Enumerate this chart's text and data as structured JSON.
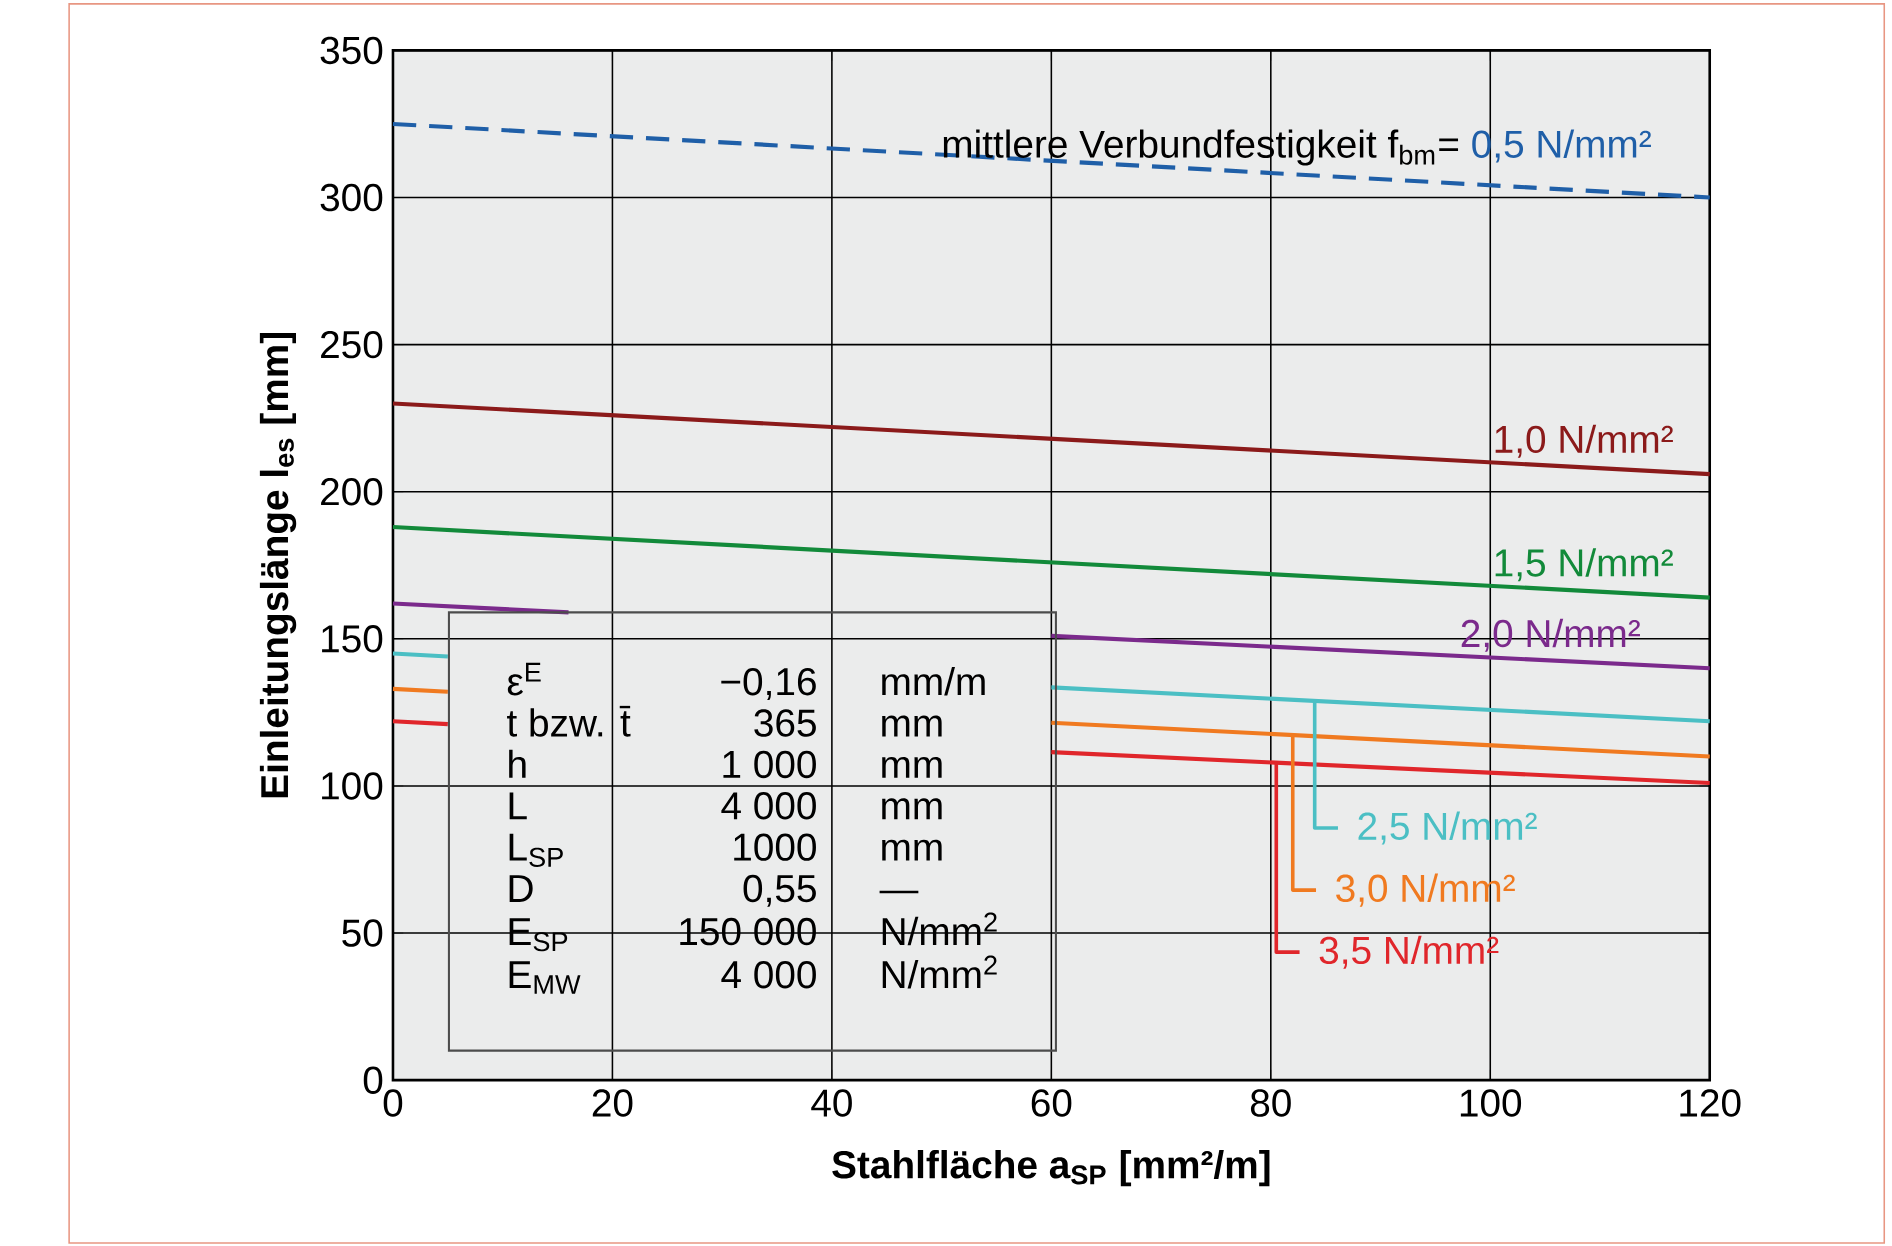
{
  "chart_data": {
    "type": "line",
    "xlabel": "Stahlfläche a$_{SP}$ [mm²/m]",
    "ylabel": "Einleitungslänge l$_{es}$ [mm]",
    "x": [
      0,
      120
    ],
    "xlim": [
      0,
      120
    ],
    "ylim": [
      0,
      350
    ],
    "xticks": [
      0,
      20,
      40,
      60,
      80,
      100,
      120
    ],
    "yticks": [
      0,
      50,
      100,
      150,
      200,
      250,
      300,
      350
    ],
    "grid": true,
    "series": [
      {
        "color": "#1f5fa8",
        "values": [
          325,
          300
        ],
        "line_style": "dashed"
      },
      {
        "color": "#8b1a1a",
        "values": [
          230,
          206
        ]
      },
      {
        "color": "#128a3a",
        "values": [
          188,
          164
        ]
      },
      {
        "color": "#7b2a8c",
        "x": [
          0,
          16,
          38,
          60,
          120
        ],
        "values": [
          162,
          159,
          null,
          151,
          140
        ]
      },
      {
        "color": "#4bbfc4",
        "x": [
          0,
          5,
          33,
          60,
          120
        ],
        "values": [
          145,
          144,
          null,
          133.5,
          122
        ]
      },
      {
        "color": "#f07a20",
        "x": [
          0,
          5,
          33,
          60,
          120
        ],
        "values": [
          133,
          132,
          null,
          121.5,
          110
        ]
      },
      {
        "color": "#e0262b",
        "x": [
          0,
          5,
          33,
          60,
          120
        ],
        "values": [
          122,
          121,
          null,
          111.5,
          101
        ]
      }
    ],
    "annotations": [
      "mittlere Verbundfestigkeit f$_{bm}$=",
      {
        "text": "0,5 N/mm²",
        "x": 115,
        "y": 301
      },
      {
        "text": "1,0 N/mm²",
        "x": 117,
        "y": 207
      },
      {
        "text": "1,5 N/mm²",
        "x": 117,
        "y": 165
      },
      {
        "text": "2,0 N/mm²",
        "x": 114,
        "y": 141
      },
      {
        "text": "2,5 N/mm²",
        "x": 84,
        "y": 129
      },
      {
        "text": "3,0 N/mm²",
        "x": 82,
        "y": 117
      },
      {
        "text": "3,5 N/mm²",
        "x": 80.5,
        "y": 108
      },
      "ε$^{E}$",
      "−0,16",
      "mm/m",
      "t bzw. t̄",
      "365",
      "mm",
      "h",
      "1 000",
      "mm",
      "L",
      "4 000",
      "mm",
      "L$_{SP}$",
      "1000",
      "mm",
      "D",
      "0,55",
      "—",
      "E$_{SP}$",
      "150 000",
      "N/mm$^{2}$",
      "E$_{MW}$",
      "4 000",
      "N/mm$^{2}$"
    ]
  }
}
